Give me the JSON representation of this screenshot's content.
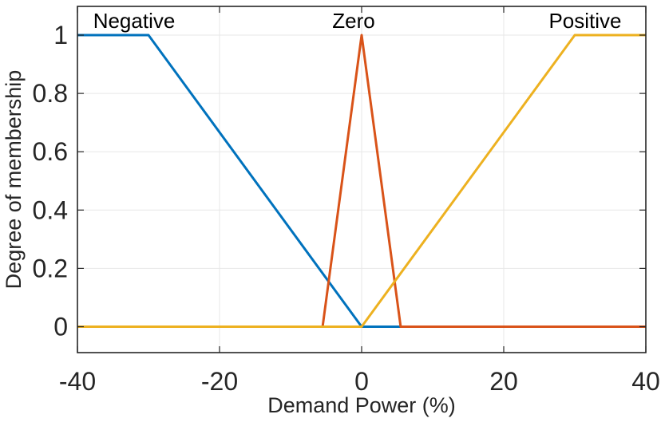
{
  "chart_data": {
    "type": "line",
    "title": "",
    "xlabel": "Demand Power (%)",
    "ylabel": "Degree of membership",
    "xlim": [
      -40,
      40
    ],
    "ylim": [
      -0.09,
      1.1
    ],
    "grid": true,
    "legend_position": "none",
    "x_ticks": [
      -40,
      -20,
      0,
      20,
      40
    ],
    "x_tick_labels": [
      "-40",
      "-20",
      "0",
      "20",
      "40"
    ],
    "y_ticks": [
      0,
      0.2,
      0.4,
      0.6,
      0.8,
      1
    ],
    "y_tick_labels": [
      "0",
      "0.2",
      "0.4",
      "0.6",
      "0.8",
      "1"
    ],
    "series": [
      {
        "name": "Negative",
        "color": "#0072BD",
        "points": [
          [
            -40,
            1
          ],
          [
            -30,
            1
          ],
          [
            0,
            0
          ],
          [
            40,
            0
          ]
        ]
      },
      {
        "name": "Zero",
        "color": "#D95319",
        "points": [
          [
            -40,
            0
          ],
          [
            -5.5,
            0
          ],
          [
            0,
            1
          ],
          [
            5.5,
            0
          ],
          [
            40,
            0
          ]
        ]
      },
      {
        "name": "Positive",
        "color": "#EDB120",
        "points": [
          [
            -40,
            0
          ],
          [
            0,
            0
          ],
          [
            30,
            1
          ],
          [
            40,
            1
          ]
        ]
      }
    ]
  },
  "colors": {
    "background": "#ffffff",
    "axis": "#262626",
    "grid": "#e7e7e7",
    "tick_text": "#262626",
    "curve_label_text": "#000000"
  }
}
